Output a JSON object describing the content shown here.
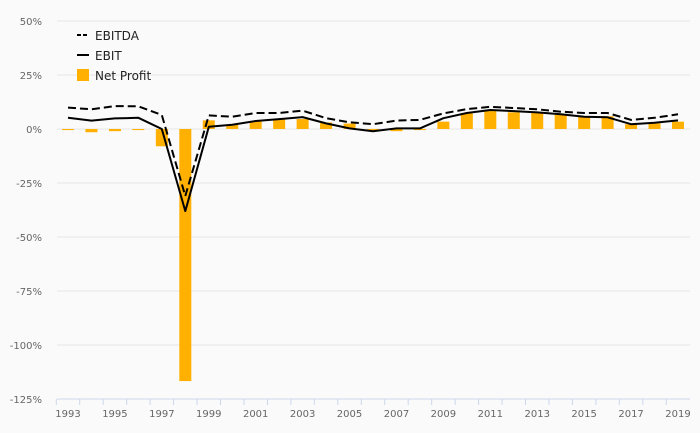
{
  "chart_data": {
    "type": "bar",
    "title": "",
    "xlabel": "",
    "ylabel": "",
    "ylim": [
      -125,
      50
    ],
    "yticks": [
      50,
      25,
      0,
      -25,
      -50,
      -75,
      -100,
      -125
    ],
    "ytick_labels": [
      "50%",
      "25%",
      "0%",
      "-25%",
      "-50%",
      "-75%",
      "-100%",
      "-125%"
    ],
    "xtick_labels": [
      "1993",
      "1995",
      "1997",
      "1999",
      "2001",
      "2003",
      "2005",
      "2007",
      "2009",
      "2011",
      "2013",
      "2015",
      "2017",
      "2019"
    ],
    "grid": true,
    "legend_position": "top-left",
    "x": [
      1993,
      1994,
      1995,
      1996,
      1997,
      1998,
      1999,
      2000,
      2001,
      2002,
      2003,
      2004,
      2005,
      2006,
      2007,
      2008,
      2009,
      2010,
      2011,
      2012,
      2013,
      2014,
      2015,
      2016,
      2017,
      2018,
      2019
    ],
    "series": [
      {
        "name": "EBITDA",
        "type": "line",
        "style": "dashed",
        "color": "#000000",
        "values": [
          9.9,
          9.1,
          10.6,
          10.5,
          6.5,
          -31,
          6.3,
          5.7,
          7.4,
          7.4,
          8.5,
          5.0,
          3.1,
          2.2,
          3.9,
          4.2,
          7.2,
          9.2,
          10.3,
          9.7,
          9.1,
          8.0,
          7.4,
          7.4,
          4.2,
          5.2,
          6.8
        ]
      },
      {
        "name": "EBIT",
        "type": "line",
        "style": "solid",
        "color": "#000000",
        "values": [
          5.2,
          3.9,
          4.9,
          5.2,
          0.0,
          -38,
          1.0,
          2.0,
          3.7,
          4.6,
          5.5,
          2.6,
          0.3,
          -1.0,
          0.3,
          0.3,
          5.0,
          7.4,
          8.8,
          8.3,
          7.7,
          6.8,
          5.7,
          5.4,
          2.2,
          2.9,
          4.0
        ]
      },
      {
        "name": "Net Profit",
        "type": "bar",
        "color": "#ffb000",
        "values": [
          -0.5,
          -1.5,
          -1.0,
          -0.5,
          -8.0,
          -116.7,
          4.0,
          2.0,
          3.7,
          4.5,
          4.6,
          3.0,
          2.5,
          -1.0,
          -1.0,
          -0.5,
          3.4,
          7.3,
          8.3,
          7.7,
          7.5,
          6.5,
          5.9,
          5.9,
          2.2,
          2.6,
          3.4
        ]
      }
    ]
  }
}
